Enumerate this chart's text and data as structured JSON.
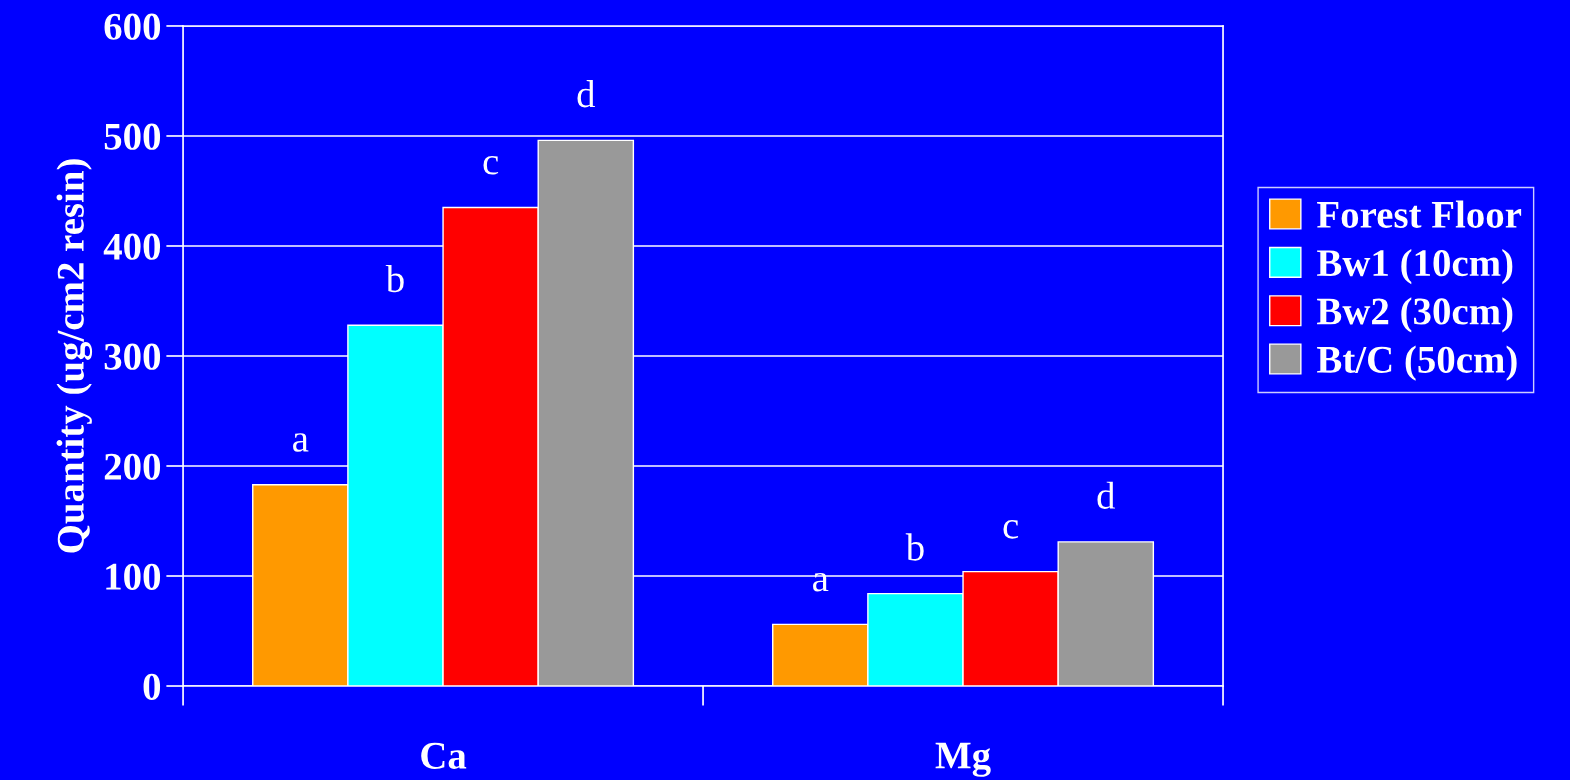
{
  "chart_data": {
    "type": "bar",
    "ylabel": "Quantity (ug/cm2 resin)",
    "categories": [
      "Ca",
      "Mg"
    ],
    "series": [
      {
        "name": "Forest Floor",
        "color": "#ff9900",
        "values": [
          183,
          56
        ],
        "value_labels": [
          "a",
          "a"
        ]
      },
      {
        "name": "Bw1 (10cm)",
        "color": "#00ffff",
        "values": [
          328,
          84
        ],
        "value_labels": [
          "b",
          "b"
        ]
      },
      {
        "name": "Bw2 (30cm)",
        "color": "#ff0000",
        "values": [
          435,
          104
        ],
        "value_labels": [
          "c",
          "c"
        ]
      },
      {
        "name": "Bt/C (50cm)",
        "color": "#999999",
        "values": [
          496,
          131
        ],
        "value_labels": [
          "d",
          "d"
        ]
      }
    ],
    "ylim": [
      0,
      600
    ],
    "yticks": [
      0,
      100,
      200,
      300,
      400,
      500,
      600
    ],
    "grid": "y",
    "legend": "right"
  }
}
